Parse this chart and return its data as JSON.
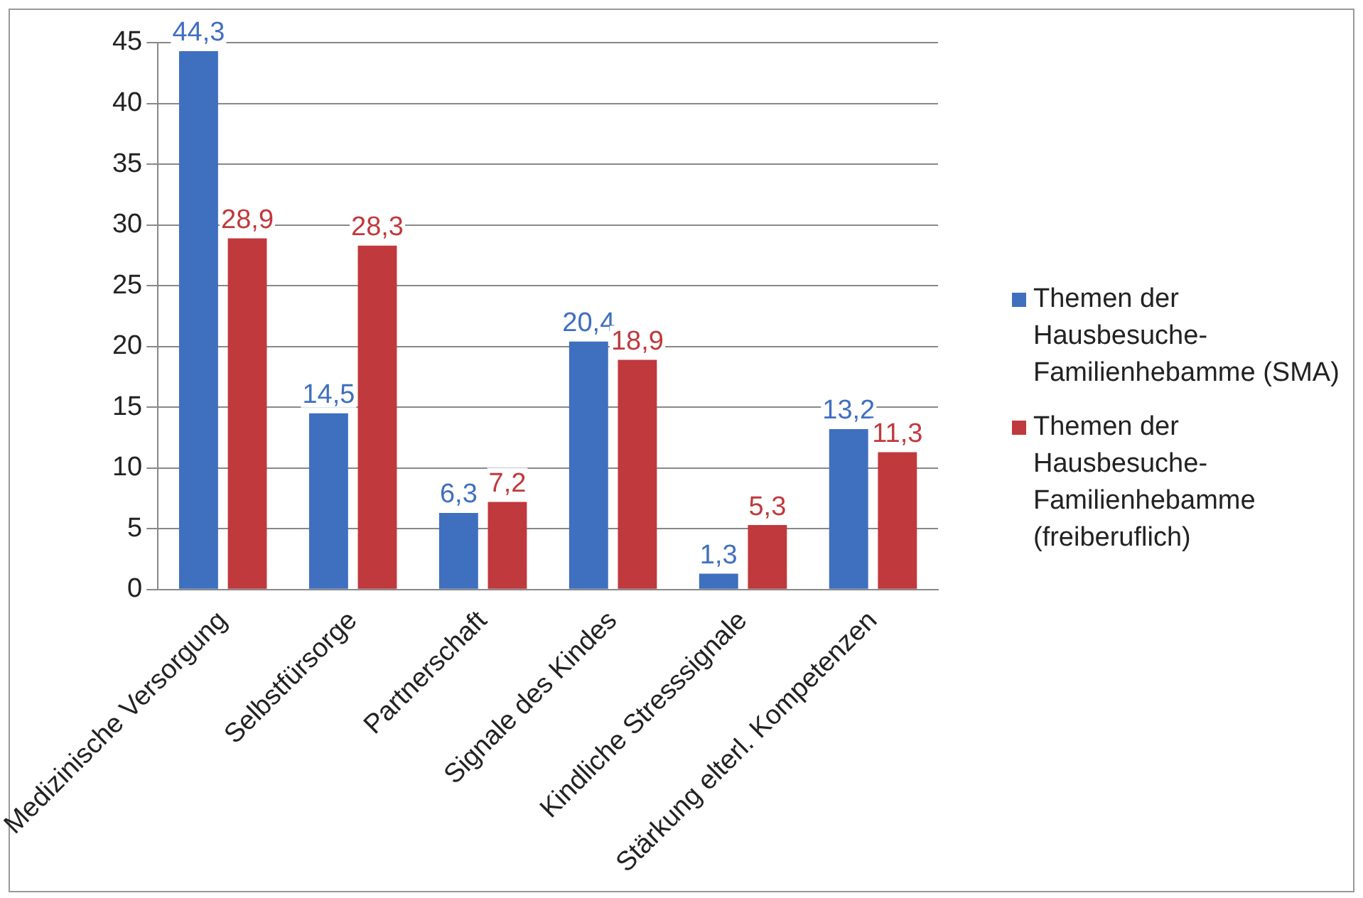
{
  "chart_data": {
    "type": "bar",
    "categories": [
      "Medizinische Versorgung",
      "Selbstfürsorge",
      "Partnerschaft",
      "Signale des Kindes",
      "Kindliche Stresssignale",
      "Stärkung elterl. Kompetenzen"
    ],
    "series": [
      {
        "name": "Themen der Hausbesuche-Familienhebamme (SMA)",
        "color": "#3f6fbf",
        "values": [
          44.3,
          14.5,
          6.3,
          20.4,
          1.3,
          13.2
        ],
        "value_labels": [
          "44,3",
          "14,5",
          "6,3",
          "20,4",
          "1,3",
          "13,2"
        ]
      },
      {
        "name": "Themen der Hausbesuche-Familienhebamme (freiberuflich)",
        "color": "#c0393d",
        "values": [
          28.9,
          28.3,
          7.2,
          18.9,
          5.3,
          11.3
        ],
        "value_labels": [
          "28,9",
          "28,3",
          "7,2",
          "18,9",
          "5,3",
          "11,3"
        ]
      }
    ],
    "ylim": [
      0,
      45
    ],
    "yticks": [
      0,
      5,
      10,
      15,
      20,
      25,
      30,
      35,
      40,
      45
    ],
    "grid": "y",
    "legend": "right"
  }
}
